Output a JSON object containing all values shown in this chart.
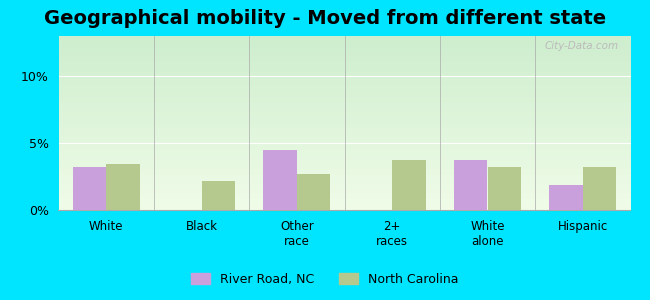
{
  "title": "Geographical mobility - Moved from different state",
  "categories": [
    "White",
    "Black",
    "Other\nrace",
    "2+\nraces",
    "White\nalone",
    "Hispanic"
  ],
  "river_road": [
    3.2,
    0.0,
    4.5,
    0.0,
    3.7,
    1.9
  ],
  "north_carolina": [
    3.4,
    2.2,
    2.7,
    3.7,
    3.2,
    3.2
  ],
  "river_road_color": "#c9a0dc",
  "nc_color": "#b5c98e",
  "ylim": [
    0,
    13
  ],
  "yticks": [
    0,
    5,
    10
  ],
  "ytick_labels": [
    "0%",
    "5%",
    "10%"
  ],
  "background_top": "#ceeece",
  "background_bottom": "#f0fce8",
  "outer_bg": "#00e5ff",
  "legend_river": "River Road, NC",
  "legend_nc": "North Carolina",
  "title_fontsize": 14,
  "bar_width": 0.35
}
